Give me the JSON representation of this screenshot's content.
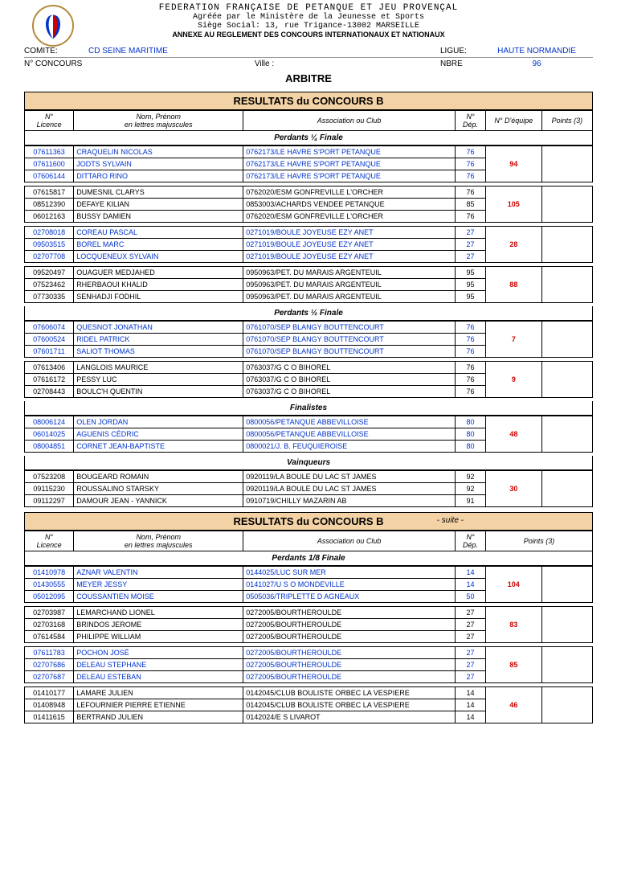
{
  "colors": {
    "banner_bg": "#f3d2a5",
    "link_blue": "#0033cc",
    "team_red": "#cc0000",
    "border": "#000000"
  },
  "header": {
    "line1": "FEDERATION FRANÇAISE DE PETANQUE ET JEU PROVENÇAL",
    "line2": "Agréée par le Ministère de la Jeunesse et Sports",
    "line3": "Siège Social: 13, rue Trigance-13002 MARSEILLE",
    "line4": "ANNEXE AU REGLEMENT DES CONCOURS INTERNATIONAUX ET NATIONAUX"
  },
  "meta": {
    "comite_label": "COMITE:",
    "comite_value": "CD SEINE MARITIME",
    "ligue_label": "LIGUE:",
    "ligue_value": "HAUTE NORMANDIE",
    "concours_label": "N° CONCOURS",
    "ville_label": "Ville :",
    "nbre_label": "NBRE",
    "nbre_value": "96",
    "arbitre": "ARBITRE"
  },
  "banner1": "RESULTATS du CONCOURS B",
  "banner2": "RESULTATS du CONCOURS B",
  "banner2_suite": "- suite -",
  "table_headers": {
    "licence": "N°\nLicence",
    "nom": "Nom, Prénom\nen lettres majuscules",
    "club": "Association ou Club",
    "dep": "N°\nDép.",
    "equipe": "N° D'équipe",
    "points": "Points (3)"
  },
  "sections": [
    {
      "title": "Perdants ¼ Finale",
      "show_equipe_col": true,
      "groups": [
        {
          "team": "94",
          "rows": [
            {
              "lic": "07611363",
              "nom": "CRAQUELIN NICOLAS",
              "club": "0762173/LE HAVRE S'PORT PETANQUE",
              "dep": "76",
              "blue": true
            },
            {
              "lic": "07611600",
              "nom": "JODTS SYLVAIN",
              "club": "0762173/LE HAVRE S'PORT PETANQUE",
              "dep": "76",
              "blue": true
            },
            {
              "lic": "07606144",
              "nom": "DITTARO RINO",
              "club": "0762173/LE HAVRE S'PORT PETANQUE",
              "dep": "76",
              "blue": true
            }
          ]
        },
        {
          "team": "105",
          "rows": [
            {
              "lic": "07615817",
              "nom": "DUMESNIL CLARYS",
              "club": "0762020/ESM GONFREVILLE L'ORCHER",
              "dep": "76",
              "blue": false
            },
            {
              "lic": "08512390",
              "nom": "DEFAYE KILIAN",
              "club": "0853003/ACHARDS VENDEE PETANQUE",
              "dep": "85",
              "blue": false
            },
            {
              "lic": "06012163",
              "nom": "BUSSY DAMIEN",
              "club": "0762020/ESM GONFREVILLE L'ORCHER",
              "dep": "76",
              "blue": false
            }
          ]
        },
        {
          "team": "28",
          "rows": [
            {
              "lic": "02708018",
              "nom": "COREAU PASCAL",
              "club": "0271019/BOULE JOYEUSE EZY ANET",
              "dep": "27",
              "blue": true
            },
            {
              "lic": "09503515",
              "nom": "BOREL MARC",
              "club": "0271019/BOULE JOYEUSE EZY ANET",
              "dep": "27",
              "blue": true
            },
            {
              "lic": "02707708",
              "nom": "LOCQUENEUX SYLVAIN",
              "club": "0271019/BOULE JOYEUSE EZY ANET",
              "dep": "27",
              "blue": true
            }
          ]
        },
        {
          "team": "88",
          "rows": [
            {
              "lic": "09520497",
              "nom": "OUAGUER MEDJAHED",
              "club": "0950963/PET. DU MARAIS ARGENTEUIL",
              "dep": "95",
              "blue": false
            },
            {
              "lic": "07523462",
              "nom": "RHERBAOUI KHALID",
              "club": "0950963/PET. DU MARAIS ARGENTEUIL",
              "dep": "95",
              "blue": false
            },
            {
              "lic": "07730335",
              "nom": "SENHADJI FODHIL",
              "club": "0950963/PET. DU MARAIS ARGENTEUIL",
              "dep": "95",
              "blue": false
            }
          ]
        }
      ]
    },
    {
      "title": "Perdants ½ Finale",
      "show_equipe_col": true,
      "groups": [
        {
          "team": "7",
          "rows": [
            {
              "lic": "07606074",
              "nom": "QUESNOT JONATHAN",
              "club": "0761070/SEP BLANGY BOUTTENCOURT",
              "dep": "76",
              "blue": true
            },
            {
              "lic": "07600524",
              "nom": "RIDEL PATRICK",
              "club": "0761070/SEP BLANGY BOUTTENCOURT",
              "dep": "76",
              "blue": true
            },
            {
              "lic": "07601711",
              "nom": "SALIOT THOMAS",
              "club": "0761070/SEP BLANGY BOUTTENCOURT",
              "dep": "76",
              "blue": true
            }
          ]
        },
        {
          "team": "9",
          "rows": [
            {
              "lic": "07613406",
              "nom": "LANGLOIS MAURICE",
              "club": "0763037/G C O  BIHOREL",
              "dep": "76",
              "blue": false
            },
            {
              "lic": "07616172",
              "nom": "PESSY LUC",
              "club": "0763037/G C O  BIHOREL",
              "dep": "76",
              "blue": false
            },
            {
              "lic": "02708443",
              "nom": "BOULC'H QUENTIN",
              "club": "0763037/G C O  BIHOREL",
              "dep": "76",
              "blue": false
            }
          ]
        }
      ]
    },
    {
      "title": "Finalistes",
      "show_equipe_col": true,
      "groups": [
        {
          "team": "48",
          "rows": [
            {
              "lic": "08006124",
              "nom": "OLEN JORDAN",
              "club": "0800056/PETANQUE ABBEVILLOISE",
              "dep": "80",
              "blue": true
            },
            {
              "lic": "06014025",
              "nom": "AGUENIS CÉDRIC",
              "club": "0800056/PETANQUE ABBEVILLOISE",
              "dep": "80",
              "blue": true
            },
            {
              "lic": "08004851",
              "nom": "CORNET JEAN-BAPTISTE",
              "club": "0800021/J. B. FEUQUIEROISE",
              "dep": "80",
              "blue": true
            }
          ]
        }
      ]
    },
    {
      "title": "Vainqueurs",
      "show_equipe_col": true,
      "groups": [
        {
          "team": "30",
          "rows": [
            {
              "lic": "07523208",
              "nom": "BOUGEARD ROMAIN",
              "club": "0920119/LA BOULE DU LAC ST JAMES",
              "dep": "92",
              "blue": false
            },
            {
              "lic": "09115230",
              "nom": "ROUSSALINO STARSKY",
              "club": "0920119/LA BOULE DU LAC ST JAMES",
              "dep": "92",
              "blue": false
            },
            {
              "lic": "09112297",
              "nom": "DAMOUR JEAN - YANNICK",
              "club": "0910719/CHILLY MAZARIN AB",
              "dep": "91",
              "blue": false
            }
          ]
        }
      ]
    }
  ],
  "sections2": [
    {
      "title": "Perdants 1/8 Finale",
      "show_equipe_col": false,
      "groups": [
        {
          "team": "104",
          "rows": [
            {
              "lic": "01410978",
              "nom": "AZNAR VALENTIN",
              "club": "0144025/LUC SUR MER",
              "dep": "14",
              "blue": true
            },
            {
              "lic": "01430555",
              "nom": "MEYER JESSY",
              "club": "0141027/U S O MONDEVILLE",
              "dep": "14",
              "blue": true
            },
            {
              "lic": "05012095",
              "nom": "COUSSANTIEN MOISE",
              "club": "0505036/TRIPLETTE D AGNEAUX",
              "dep": "50",
              "blue": true
            }
          ]
        },
        {
          "team": "83",
          "rows": [
            {
              "lic": "02703987",
              "nom": "LEMARCHAND LIONEL",
              "club": "0272005/BOURTHEROULDE",
              "dep": "27",
              "blue": false
            },
            {
              "lic": "02703168",
              "nom": "BRINDOS JEROME",
              "club": "0272005/BOURTHEROULDE",
              "dep": "27",
              "blue": false
            },
            {
              "lic": "07614584",
              "nom": "PHILIPPE WILLIAM",
              "club": "0272005/BOURTHEROULDE",
              "dep": "27",
              "blue": false
            }
          ]
        },
        {
          "team": "85",
          "rows": [
            {
              "lic": "07611783",
              "nom": "POCHON JOSÉ",
              "club": "0272005/BOURTHEROULDE",
              "dep": "27",
              "blue": true
            },
            {
              "lic": "02707686",
              "nom": "DELEAU STEPHANE",
              "club": "0272005/BOURTHEROULDE",
              "dep": "27",
              "blue": true
            },
            {
              "lic": "02707687",
              "nom": "DELEAU ESTEBAN",
              "club": "0272005/BOURTHEROULDE",
              "dep": "27",
              "blue": true
            }
          ]
        },
        {
          "team": "46",
          "rows": [
            {
              "lic": "01410177",
              "nom": "LAMARE JULIEN",
              "club": "0142045/CLUB BOULISTE ORBEC LA VESPIERE",
              "dep": "14",
              "blue": false
            },
            {
              "lic": "01408948",
              "nom": "LEFOURNIER PIERRE ETIENNE",
              "club": "0142045/CLUB BOULISTE ORBEC LA VESPIERE",
              "dep": "14",
              "blue": false
            },
            {
              "lic": "01411615",
              "nom": "BERTRAND JULIEN",
              "club": "0142024/E S LIVAROT",
              "dep": "14",
              "blue": false
            }
          ]
        }
      ]
    }
  ]
}
